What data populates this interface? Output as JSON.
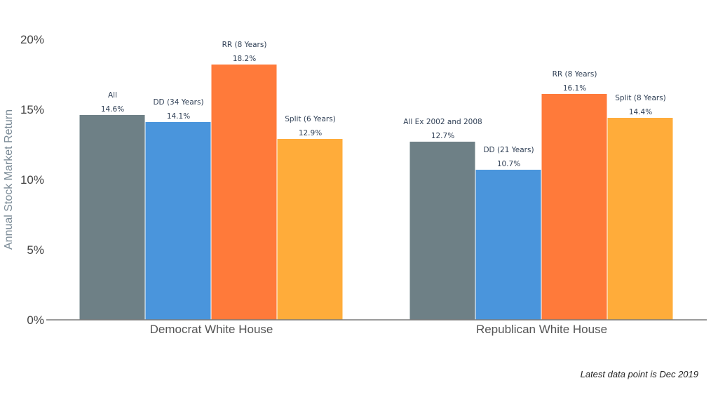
{
  "chart_data": {
    "type": "bar",
    "ylabel": "Annual Stock Market Return",
    "xlabel": "",
    "ylim": [
      0,
      20
    ],
    "yticks": [
      0,
      5,
      10,
      15,
      20
    ],
    "ytick_labels": [
      "0%",
      "5%",
      "10%",
      "15%",
      "20%"
    ],
    "grid": false,
    "categories": [
      "Democrat White House",
      "Republican White House"
    ],
    "groups": [
      {
        "category": "Democrat White House",
        "bars": [
          {
            "name": "All",
            "value": 14.6,
            "value_label": "14.6%",
            "color": "#6e8086"
          },
          {
            "name": "DD (34 Years)",
            "value": 14.1,
            "value_label": "14.1%",
            "color": "#4a95dc"
          },
          {
            "name": "RR (8 Years)",
            "value": 18.2,
            "value_label": "18.2%",
            "color": "#ff7a3a"
          },
          {
            "name": "Split (6 Years)",
            "value": 12.9,
            "value_label": "12.9%",
            "color": "#ffac3a"
          }
        ]
      },
      {
        "category": "Republican White House",
        "bars": [
          {
            "name": "All Ex 2002 and 2008",
            "value": 12.7,
            "value_label": "12.7%",
            "color": "#6e8086"
          },
          {
            "name": "DD (21 Years)",
            "value": 10.7,
            "value_label": "10.7%",
            "color": "#4a95dc"
          },
          {
            "name": "RR (8 Years)",
            "value": 16.1,
            "value_label": "16.1%",
            "color": "#ff7a3a"
          },
          {
            "name": "Split (8 Years)",
            "value": 14.4,
            "value_label": "14.4%",
            "color": "#ffac3a"
          }
        ]
      }
    ],
    "footnote": "Latest data point is Dec 2019"
  }
}
